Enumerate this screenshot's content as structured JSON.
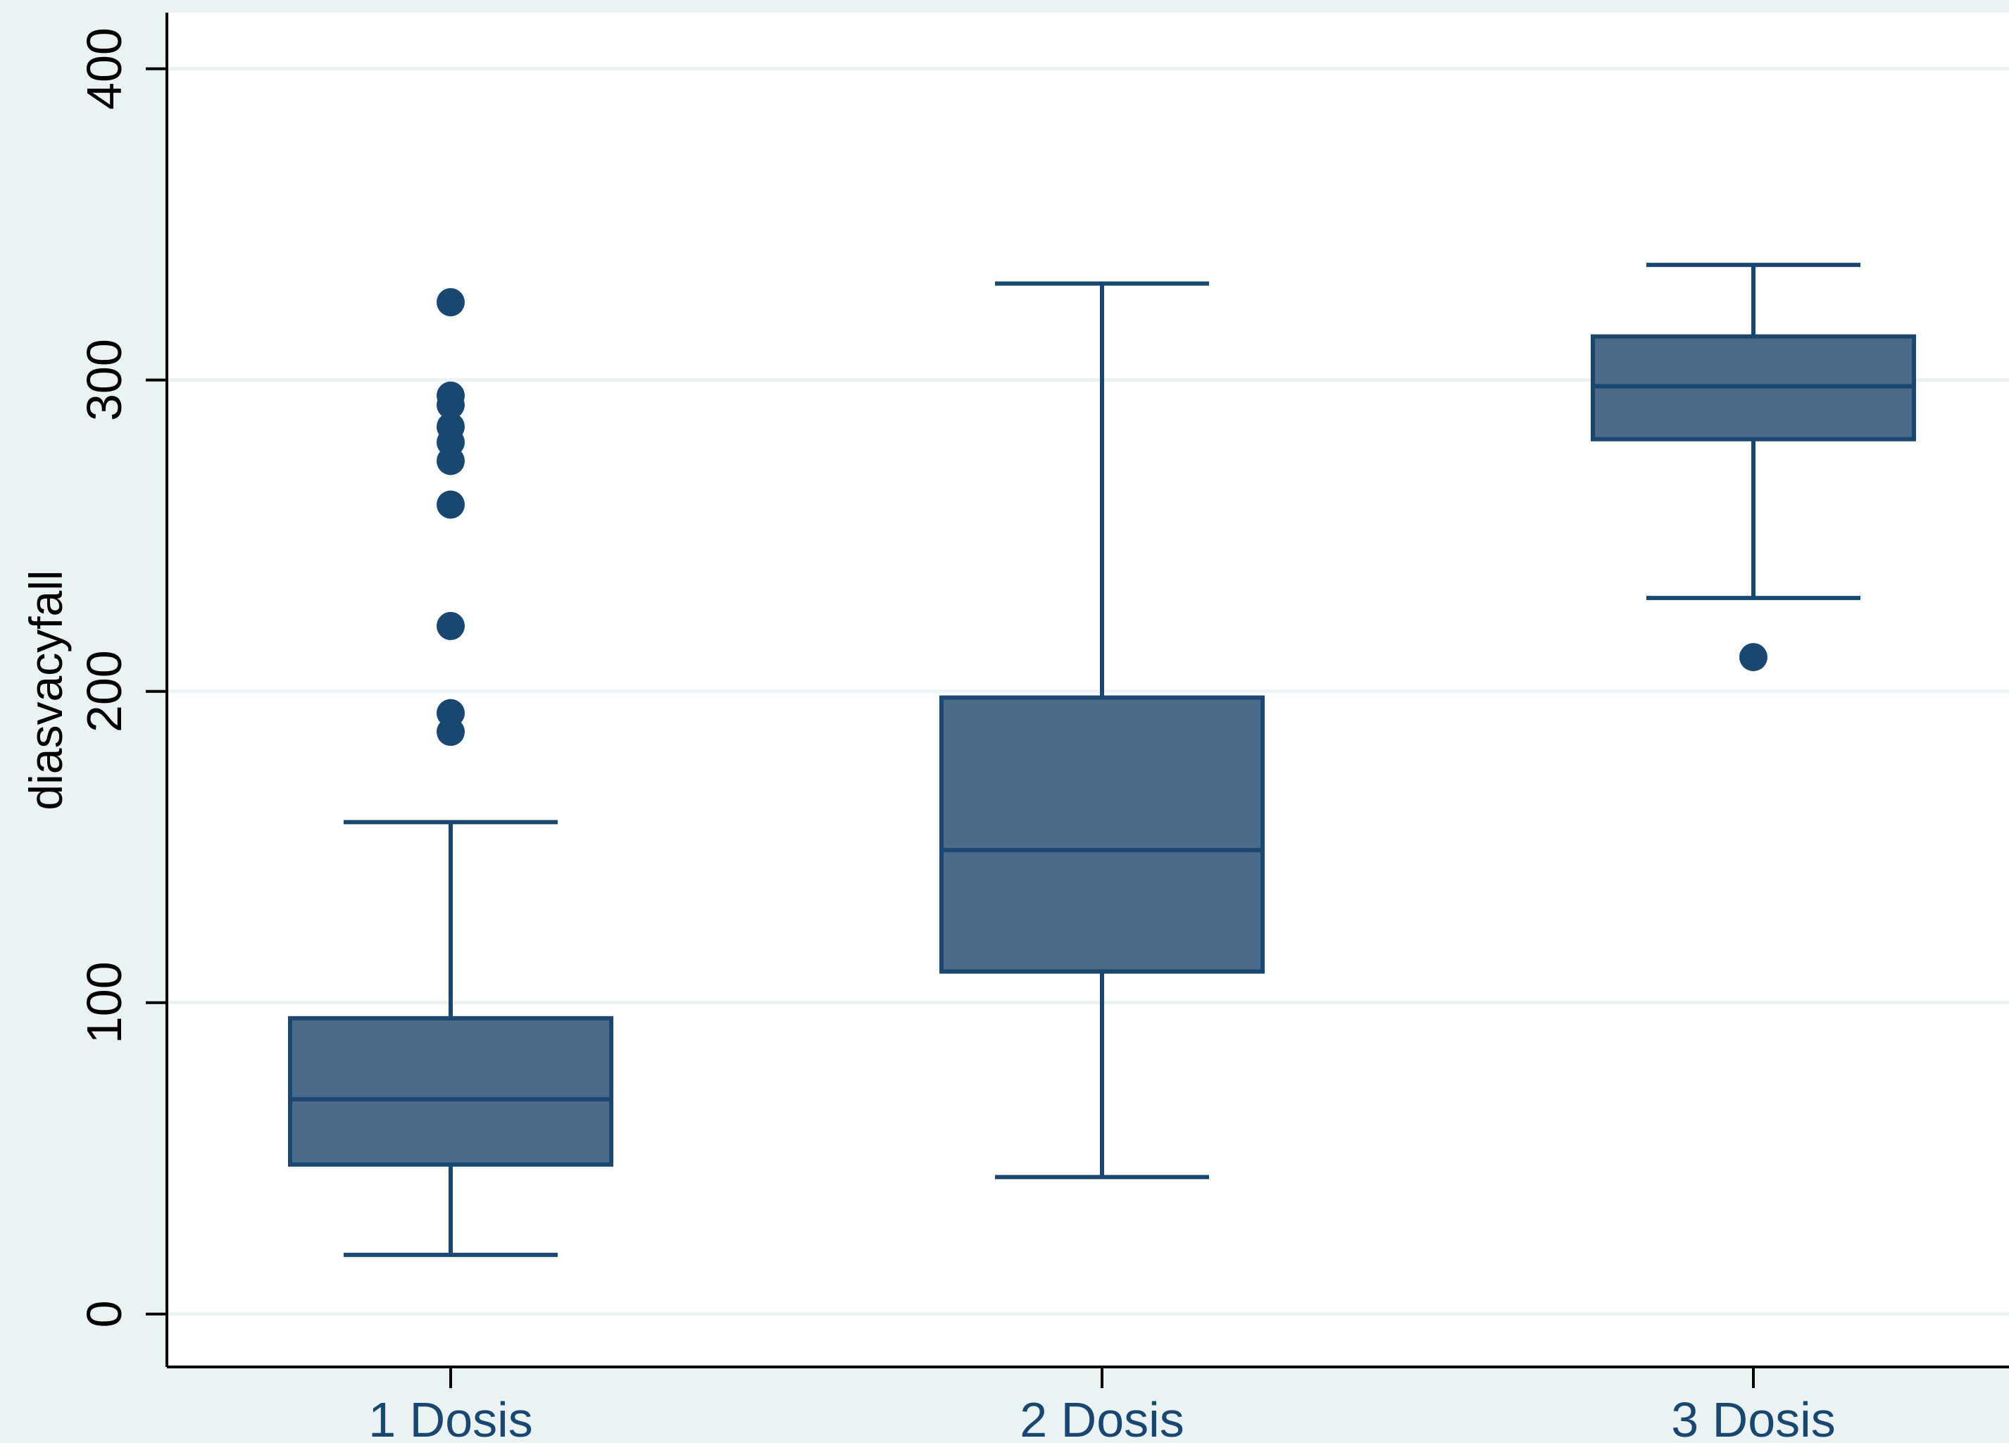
{
  "chart_data": {
    "type": "box",
    "title": "",
    "xlabel": "",
    "ylabel": "diasvacyfall",
    "ylim": [
      -17,
      418
    ],
    "yticks": [
      0,
      100,
      200,
      300,
      400
    ],
    "grid": true,
    "categories": [
      "1 Dosis",
      "2 Dosis",
      "3 Dosis"
    ],
    "boxes": [
      {
        "category": "1 Dosis",
        "whisker_low": 19,
        "q1": 48,
        "median": 69,
        "q3": 95,
        "whisker_high": 158,
        "outliers": [
          187,
          193,
          221,
          260,
          274,
          280,
          285,
          292,
          295,
          325
        ]
      },
      {
        "category": "2 Dosis",
        "whisker_low": 44,
        "q1": 110,
        "median": 149,
        "q3": 198,
        "whisker_high": 331,
        "outliers": []
      },
      {
        "category": "3 Dosis",
        "whisker_low": 230,
        "q1": 281,
        "median": 298,
        "q3": 314,
        "whisker_high": 337,
        "outliers": [
          211
        ]
      }
    ],
    "colors": {
      "box_fill": "#4a6b8a",
      "stroke": "#1a476f",
      "grid": "#eaf2f3",
      "plot_bg": "#ffffff",
      "outer_bg": "#eaf2f3"
    }
  }
}
